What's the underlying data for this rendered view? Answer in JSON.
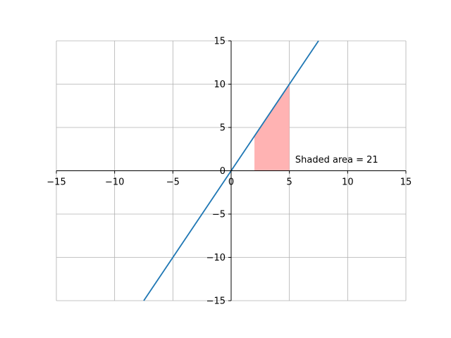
{
  "chart_data": {
    "type": "line",
    "title": "",
    "xlabel": "",
    "ylabel": "",
    "xlim": [
      -15,
      15
    ],
    "ylim": [
      -15,
      15
    ],
    "grid": true,
    "axes_through_origin": true,
    "x_ticks": [
      -15,
      -10,
      -5,
      0,
      5,
      10,
      15
    ],
    "y_ticks": [
      -15,
      -10,
      -5,
      0,
      5,
      10,
      15
    ],
    "series": [
      {
        "x": [
          -7.5,
          7.5
        ],
        "y": [
          -15,
          15
        ],
        "color": "#1f77b4"
      }
    ],
    "shaded_region": {
      "x_from": 2,
      "x_to": 5,
      "function": "y = 2x",
      "color": "#ffb3b3"
    },
    "annotation": {
      "text": "Shaded area = 21",
      "x": 5.5,
      "y": 1.3
    }
  }
}
